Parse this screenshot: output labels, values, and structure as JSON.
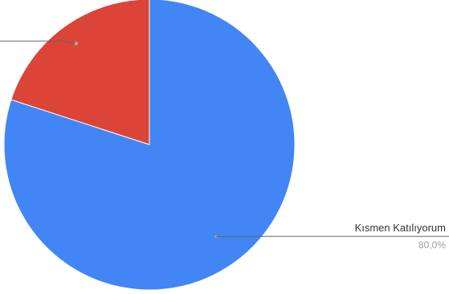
{
  "chart_data": {
    "type": "pie",
    "slices": [
      {
        "label": "Kısmen Katılıyorum",
        "value": 80.0,
        "value_label": "80,0%",
        "color": "#4285f4"
      },
      {
        "label": "",
        "value": 20.0,
        "value_label": "",
        "color": "#db4437"
      }
    ],
    "legend": "none"
  }
}
